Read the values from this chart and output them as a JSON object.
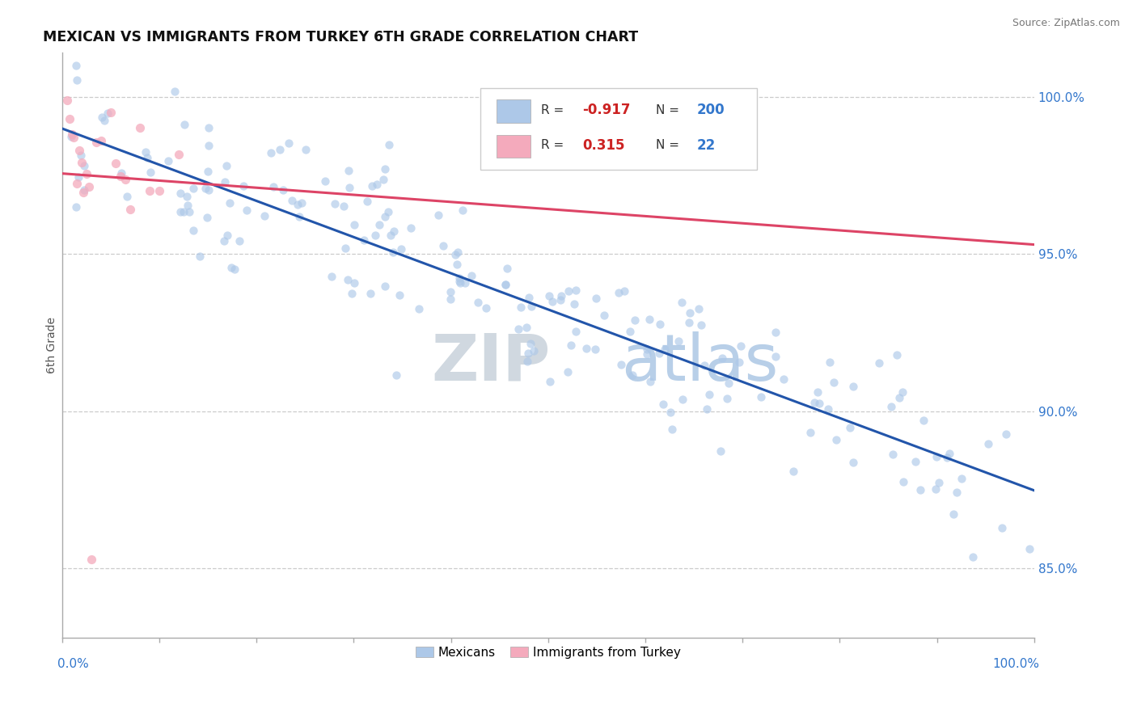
{
  "title": "MEXICAN VS IMMIGRANTS FROM TURKEY 6TH GRADE CORRELATION CHART",
  "source": "Source: ZipAtlas.com",
  "ylabel": "6th Grade",
  "legend1_R": "-0.917",
  "legend1_N": "200",
  "legend2_R": "0.315",
  "legend2_N": "22",
  "watermark_zip": "ZIP",
  "watermark_atlas": "atlas",
  "blue_color": "#adc8e8",
  "pink_color": "#f4aabc",
  "blue_line_color": "#2255aa",
  "pink_line_color": "#dd4466",
  "background_color": "#ffffff",
  "grid_color": "#cccccc",
  "right_axis_color": "#3377cc",
  "title_color": "#111111",
  "source_color": "#777777",
  "ylabel_color": "#555555"
}
